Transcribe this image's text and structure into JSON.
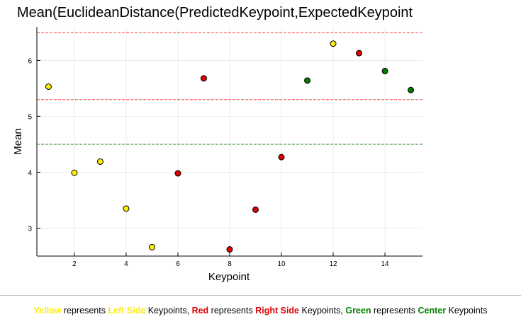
{
  "chart_data": {
    "type": "scatter",
    "title": "Mean(EuclideanDistance(PredictedKeypoint,ExpectedKeypoint",
    "xlabel": "Keypoint",
    "ylabel": "Mean",
    "xlim": [
      0.55,
      15.45
    ],
    "ylim": [
      2.5,
      6.6
    ],
    "xticks": [
      2,
      4,
      6,
      8,
      10,
      12,
      14
    ],
    "yticks": [
      3,
      4,
      5,
      6
    ],
    "grid": true,
    "points": [
      {
        "x": 1,
        "y": 5.53,
        "group": "Left Side",
        "color": "#ffee00"
      },
      {
        "x": 2,
        "y": 3.99,
        "group": "Left Side",
        "color": "#ffee00"
      },
      {
        "x": 3,
        "y": 4.19,
        "group": "Left Side",
        "color": "#ffee00"
      },
      {
        "x": 4,
        "y": 3.35,
        "group": "Left Side",
        "color": "#ffee00"
      },
      {
        "x": 5,
        "y": 2.66,
        "group": "Left Side",
        "color": "#ffee00"
      },
      {
        "x": 6,
        "y": 3.98,
        "group": "Right Side",
        "color": "#e00000"
      },
      {
        "x": 7,
        "y": 5.68,
        "group": "Right Side",
        "color": "#e00000"
      },
      {
        "x": 8,
        "y": 2.62,
        "group": "Right Side",
        "color": "#e00000"
      },
      {
        "x": 9,
        "y": 3.33,
        "group": "Right Side",
        "color": "#e00000"
      },
      {
        "x": 10,
        "y": 4.27,
        "group": "Right Side",
        "color": "#e00000"
      },
      {
        "x": 11,
        "y": 5.64,
        "group": "Center",
        "color": "#007a00"
      },
      {
        "x": 12,
        "y": 6.3,
        "group": "Left Side",
        "color": "#ffee00"
      },
      {
        "x": 13,
        "y": 6.13,
        "group": "Right Side",
        "color": "#e00000"
      },
      {
        "x": 14,
        "y": 5.81,
        "group": "Center",
        "color": "#007a00"
      },
      {
        "x": 15,
        "y": 5.47,
        "group": "Center",
        "color": "#007a00"
      }
    ],
    "reference_lines": [
      {
        "y": 6.5,
        "color": "#ff4040",
        "style": "dashed"
      },
      {
        "y": 5.3,
        "color": "#ff4040",
        "style": "dashed"
      },
      {
        "y": 4.5,
        "color": "#228b22",
        "style": "dashed"
      }
    ]
  },
  "caption": {
    "yellow_word": "Yellow",
    "represents_1": " represents ",
    "left_side": "Left Side",
    "keypoints_1": " Keypoints, ",
    "red_word": "Red",
    "represents_2": " represents ",
    "right_side": "Right Side",
    "keypoints_2": " Keypoints, ",
    "green_word": "Green",
    "represents_3": " represents ",
    "center": "Center",
    "keypoints_3": " Keypoints"
  }
}
